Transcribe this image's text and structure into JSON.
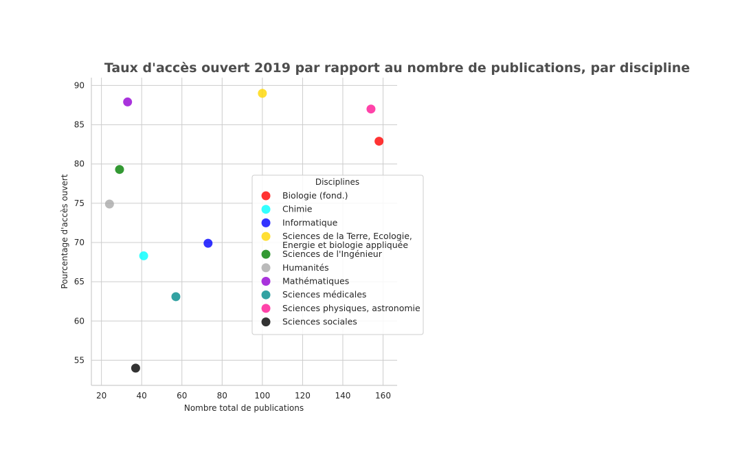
{
  "chart_data": {
    "type": "scatter",
    "title": "Taux d'accès ouvert 2019 par rapport au nombre de publications, par discipline",
    "xlabel": "Nombre total de publications",
    "ylabel": "Pourcentage d'accès ouvert",
    "xlim": [
      15,
      167
    ],
    "ylim": [
      51.8,
      91
    ],
    "xticks": [
      20,
      40,
      60,
      80,
      100,
      120,
      140,
      160
    ],
    "yticks": [
      55,
      60,
      65,
      70,
      75,
      80,
      85,
      90
    ],
    "grid": true,
    "legend": {
      "title": "Disciplines",
      "placement": "center-right"
    },
    "series": [
      {
        "name": "Biologie (fond.)",
        "color": "#ff0000",
        "x": [
          158
        ],
        "y": [
          82.9
        ]
      },
      {
        "name": "Chimie",
        "color": "#00ffff",
        "x": [
          41
        ],
        "y": [
          68.3
        ]
      },
      {
        "name": "Informatique",
        "color": "#0000ff",
        "x": [
          73
        ],
        "y": [
          69.9
        ]
      },
      {
        "name": "Sciences de la Terre, Ecologie,\nEnergie et biologie appliquée",
        "color": "#ffd700",
        "x": [
          100
        ],
        "y": [
          89.0
        ]
      },
      {
        "name": "Sciences de l'Ingénieur",
        "color": "#008000",
        "x": [
          29
        ],
        "y": [
          79.3
        ]
      },
      {
        "name": "Humanités",
        "color": "#a9a9a9",
        "x": [
          24
        ],
        "y": [
          74.9
        ]
      },
      {
        "name": "Mathématiques",
        "color": "#9400d3",
        "x": [
          33
        ],
        "y": [
          87.9
        ]
      },
      {
        "name": "Sciences médicales",
        "color": "#008b8b",
        "x": [
          57
        ],
        "y": [
          63.1
        ]
      },
      {
        "name": "Sciences physiques, astronomie",
        "color": "#ff1493",
        "x": [
          154
        ],
        "y": [
          87.0
        ]
      },
      {
        "name": "Sciences sociales",
        "color": "#000000",
        "x": [
          37
        ],
        "y": [
          54.0
        ]
      }
    ]
  }
}
